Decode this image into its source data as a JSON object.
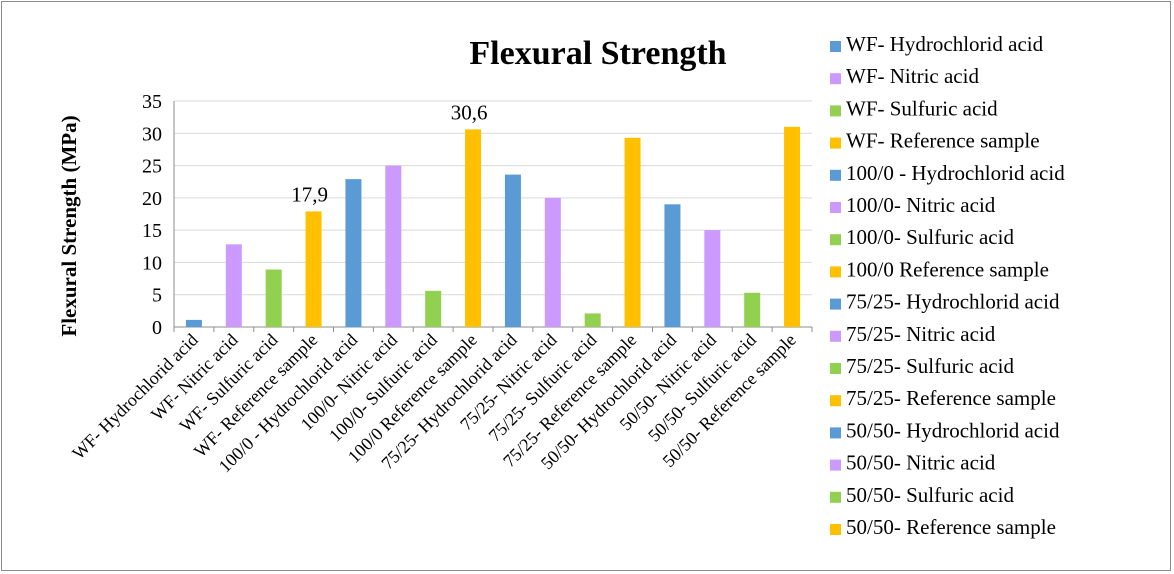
{
  "chart_data": {
    "type": "bar",
    "title": "Flexural Strength",
    "ylabel": "Flexural Strength (MPa)",
    "xlabel": "",
    "ylim": [
      0,
      35
    ],
    "yticks": [
      0,
      5,
      10,
      15,
      20,
      25,
      30,
      35
    ],
    "grid": "horizontal",
    "legend_position": "right",
    "categories": [
      "WF- Hydrochlorid acid",
      "WF- Nitric acid",
      "WF- Sulfuric acid",
      "WF- Reference sample",
      "100/0 - Hydrochlorid acid",
      "100/0- Nitric acid",
      "100/0- Sulfuric acid",
      "100/0 Reference sample",
      "75/25- Hydrochlorid acid",
      "75/25- Nitric acid",
      "75/25- Sulfuric acid",
      "75/25- Reference sample",
      "50/50- Hydrochlorid acid",
      "50/50- Nitric acid",
      "50/50- Sulfuric acid",
      "50/50- Reference sample"
    ],
    "values": [
      1.1,
      12.8,
      8.9,
      17.9,
      22.9,
      25.0,
      5.6,
      30.6,
      23.6,
      20.0,
      2.1,
      29.3,
      19.0,
      15.0,
      5.3,
      31.0
    ],
    "colors": [
      "#5b9bd5",
      "#cc99ff",
      "#92d050",
      "#ffc000",
      "#5b9bd5",
      "#cc99ff",
      "#92d050",
      "#ffc000",
      "#5b9bd5",
      "#cc99ff",
      "#92d050",
      "#ffc000",
      "#5b9bd5",
      "#cc99ff",
      "#92d050",
      "#ffc000"
    ],
    "data_labels": [
      {
        "index": 3,
        "text": "17,9"
      },
      {
        "index": 7,
        "text": "30,6"
      }
    ],
    "legend": [
      "WF- Hydrochlorid acid",
      "WF- Nitric acid",
      "WF- Sulfuric acid",
      "WF- Reference sample",
      "100/0 - Hydrochlorid acid",
      "100/0- Nitric acid",
      "100/0- Sulfuric acid",
      "100/0 Reference sample",
      "75/25- Hydrochlorid acid",
      "75/25- Nitric acid",
      "75/25- Sulfuric acid",
      "75/25- Reference sample",
      "50/50- Hydrochlorid acid",
      "50/50- Nitric acid",
      "50/50- Sulfuric acid",
      "50/50- Reference sample"
    ]
  }
}
